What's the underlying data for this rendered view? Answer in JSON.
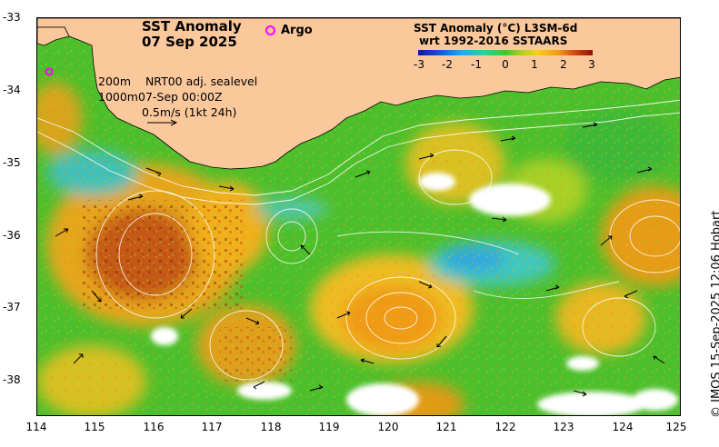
{
  "title": {
    "line1": "SST Anomaly",
    "line2": "07 Sep 2025"
  },
  "argo_label": "Argo",
  "colorbar": {
    "title1": "SST Anomaly (°C) L3SM-6d",
    "title2": "wrt 1992-2016 SSTAARS",
    "ticks": [
      "-3",
      "-2",
      "-1",
      "0",
      "1",
      "2",
      "3"
    ],
    "range": [
      -3,
      3
    ]
  },
  "info": {
    "isobath1": "200m",
    "isobath2": "1000m",
    "product": "NRT00 adj. sealevel",
    "datetime": "07-Sep 00:00Z",
    "scale": "0.5m/s (1kt 24h)"
  },
  "axes": {
    "lon_ticks": [
      "114",
      "115",
      "116",
      "117",
      "118",
      "119",
      "120",
      "121",
      "122",
      "123",
      "124",
      "125"
    ],
    "lat_ticks": [
      "-33",
      "-34",
      "-35",
      "-36",
      "-37",
      "-38"
    ],
    "lon_range": [
      114,
      125
    ],
    "lat_range": [
      -38.5,
      -33
    ]
  },
  "credit": "© IMOS 15-Sep-2025 12:06 Hobart",
  "colors": {
    "land": "#fac89b",
    "argo": "#ff00ff",
    "positive": "#e0a418",
    "negative": "#30c0d8",
    "neutral": "#4cbf2c"
  },
  "argo_floats": [
    {
      "lon": 114.2,
      "lat": -33.73
    }
  ]
}
